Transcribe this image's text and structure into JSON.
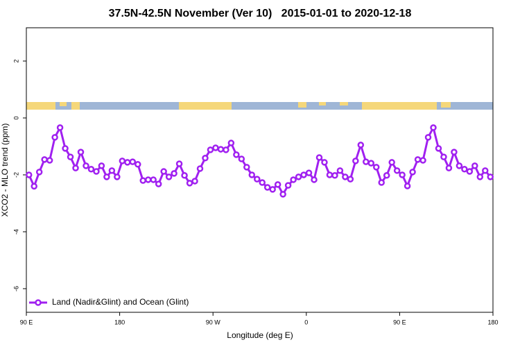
{
  "chart_data": {
    "type": "line",
    "title": "37.5N-42.5N November (Ver 10)   2015-01-01 to 2020-12-18",
    "xlabel": "Longitude (deg E)",
    "ylabel": "XCO2 - MLO trend (ppm)",
    "legend": "bottom left",
    "xlim": [
      90,
      540
    ],
    "xticks": [
      {
        "value": 90,
        "label": "90 E"
      },
      180,
      {
        "value": 270,
        "label": "90 W"
      },
      {
        "value": 360,
        "label": "0"
      },
      {
        "value": 450,
        "label": "90 E"
      },
      {
        "value": 540,
        "label": "180"
      }
    ],
    "ylim": [
      -6.83,
      3.17
    ],
    "yticks": [
      -6,
      -4,
      -2,
      0,
      2
    ],
    "x": [
      92.5,
      97.5,
      102.5,
      107.5,
      112.5,
      117.5,
      122.5,
      127.5,
      132.5,
      137.5,
      142.5,
      147.5,
      152.5,
      157.5,
      162.5,
      167.5,
      172.5,
      177.5,
      182.5,
      187.5,
      192.5,
      197.5,
      202.5,
      207.5,
      212.5,
      217.5,
      222.5,
      227.5,
      232.5,
      237.5,
      242.5,
      247.5,
      252.5,
      257.5,
      262.5,
      267.5,
      272.5,
      277.5,
      282.5,
      287.5,
      292.5,
      297.5,
      302.5,
      307.5,
      312.5,
      317.5,
      322.5,
      327.5,
      332.5,
      337.5,
      342.5,
      347.5,
      352.5,
      357.5,
      362.5,
      367.5,
      372.5,
      377.5,
      382.5,
      387.5,
      392.5,
      397.5,
      402.5,
      407.5,
      412.5,
      417.5,
      422.5,
      427.5,
      432.5,
      437.5,
      442.5,
      447.5,
      452.5,
      457.5,
      462.5,
      467.5,
      472.5,
      477.5,
      482.5,
      487.5,
      492.5,
      497.5,
      502.5,
      507.5,
      512.5,
      517.5,
      522.5,
      527.5,
      532.5,
      537.5
    ],
    "series": [
      {
        "name": "Land (Nadir&Glint) and Ocean (Glint)",
        "color": "#a020f0",
        "values": [
          -2.0,
          -2.4,
          -1.9,
          -1.46,
          -1.49,
          -0.68,
          -0.34,
          -1.07,
          -1.37,
          -1.76,
          -1.2,
          -1.68,
          -1.8,
          -1.88,
          -1.68,
          -2.07,
          -1.85,
          -2.07,
          -1.51,
          -1.56,
          -1.54,
          -1.63,
          -2.2,
          -2.17,
          -2.17,
          -2.32,
          -1.88,
          -2.07,
          -1.95,
          -1.61,
          -2.02,
          -2.29,
          -2.22,
          -1.78,
          -1.41,
          -1.12,
          -1.05,
          -1.1,
          -1.12,
          -0.88,
          -1.29,
          -1.44,
          -1.73,
          -2.0,
          -2.15,
          -2.27,
          -2.44,
          -2.51,
          -2.34,
          -2.68,
          -2.37,
          -2.17,
          -2.07,
          -2.0,
          -1.93,
          -2.17,
          -1.39,
          -1.56,
          -2.0,
          -2.02,
          -1.85,
          -2.07,
          -2.15,
          -1.51,
          -0.95,
          -1.54,
          -1.59,
          -1.73,
          -2.27,
          -2.02,
          -1.56,
          -1.85,
          -2.0,
          -2.39,
          -1.9,
          -1.46,
          -1.49,
          -0.68,
          -0.34,
          -1.07,
          -1.37,
          -1.76,
          -1.2,
          -1.68,
          -1.8,
          -1.88,
          -1.68,
          -2.07,
          -1.85,
          -2.07
        ]
      }
    ]
  }
}
